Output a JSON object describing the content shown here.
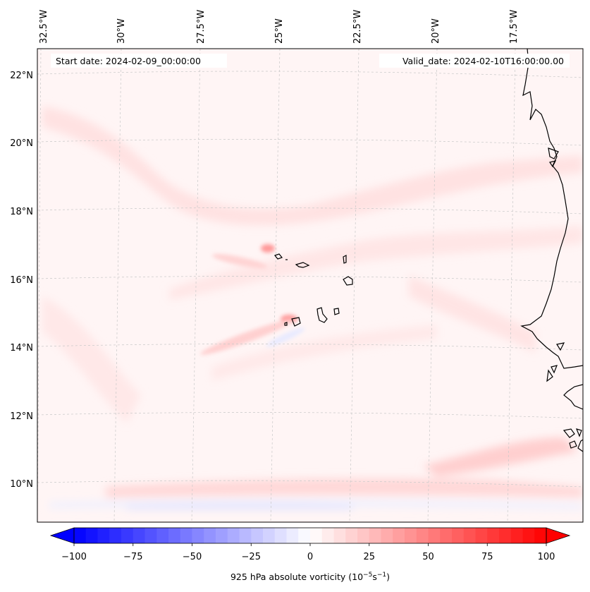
{
  "header": {
    "start_date": "Start date: 2024-02-09_00:00:00",
    "valid_date": "Valid_date: 2024-02-10T16:00:00.00"
  },
  "longitude_labels": [
    "32.5°W",
    "30°W",
    "27.5°W",
    "25°W",
    "22.5°W",
    "20°W",
    "17.5°W"
  ],
  "latitude_labels": [
    "22°N",
    "20°N",
    "18°N",
    "16°N",
    "14°N",
    "12°N",
    "10°N"
  ],
  "colorbar": {
    "ticks": [
      "−100",
      "−75",
      "−50",
      "−25",
      "0",
      "25",
      "50",
      "75",
      "100"
    ],
    "label": "925 hPa absolute vorticity (10",
    "label_exp1": "−5",
    "label_mid": "s",
    "label_exp2": "−1",
    "label_end": ")",
    "range": [
      -100,
      100
    ],
    "levels": 40,
    "colors": {
      "negative": "#0000ff",
      "neutral": "#ffffff",
      "positive": "#ff0000"
    }
  },
  "map": {
    "background": "#fff5f5",
    "coastline_color": "#000000",
    "gridline_color": "#c8c8c8"
  }
}
